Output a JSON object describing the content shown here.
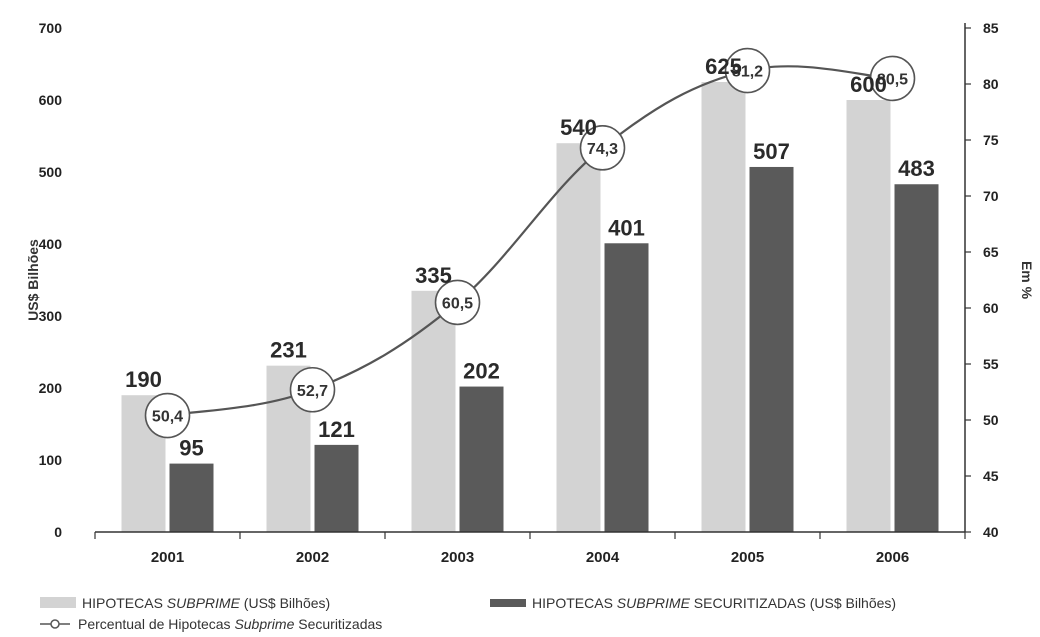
{
  "chart_data": {
    "type": "bar",
    "categories": [
      "2001",
      "2002",
      "2003",
      "2004",
      "2005",
      "2006"
    ],
    "series": [
      {
        "name": "HIPOTECAS SUBPRIME (US$ Bilhões)",
        "kind": "bar",
        "axis": "left",
        "color": "#d3d3d3",
        "values": [
          190,
          231,
          335,
          540,
          625,
          600
        ]
      },
      {
        "name": "HIPOTECAS SUBPRIME SECURITIZADAS (US$ Bilhões)",
        "kind": "bar",
        "axis": "left",
        "color": "#5a5a5a",
        "values": [
          95,
          121,
          202,
          401,
          507,
          483
        ]
      },
      {
        "name": "Percentual de Hipotecas Subprime Securitizadas",
        "kind": "line",
        "axis": "right",
        "color": "#555555",
        "values": [
          50.4,
          52.7,
          60.5,
          74.3,
          81.2,
          80.5
        ],
        "labels": [
          "50,4",
          "52,7",
          "60,5",
          "74,3",
          "81,2",
          "80,5"
        ]
      }
    ],
    "ylabel": "US$ Bilhões",
    "ylabel_right": "Em %",
    "ylim": [
      0,
      700
    ],
    "yticks": [
      0,
      100,
      200,
      300,
      400,
      500,
      600,
      700
    ],
    "ylim_right": [
      40,
      85
    ],
    "yticks_right": [
      40,
      45,
      50,
      55,
      60,
      65,
      70,
      75,
      80,
      85
    ],
    "grid": false,
    "legend_position": "bottom",
    "legend": [
      {
        "label_pre": "HIPOTECAS ",
        "label_italic": "SUBPRIME",
        "label_post": " (US$ Bilhões)",
        "marker": "bar-light"
      },
      {
        "label_pre": "HIPOTECAS ",
        "label_italic": "SUBPRIME",
        "label_post": " SECURITIZADAS (US$ Bilhões)",
        "marker": "bar-dark"
      },
      {
        "label_pre": "Percentual de Hipotecas ",
        "label_italic": "Subprime",
        "label_post": " Securitizadas",
        "marker": "line-circle"
      }
    ]
  }
}
